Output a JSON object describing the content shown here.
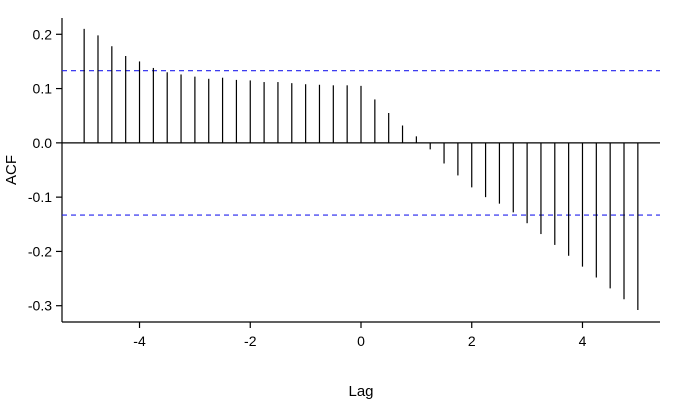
{
  "chart_data": {
    "type": "bar",
    "subtype": "acf-stem-plot",
    "title": "",
    "xlabel": "Lag",
    "ylabel": "ACF",
    "xlim": [
      -5.4,
      5.4
    ],
    "ylim": [
      -0.33,
      0.23
    ],
    "x_tick_values": [
      -4,
      -2,
      0,
      2,
      4
    ],
    "x_tick_labels": [
      "-4",
      "-2",
      "0",
      "2",
      "4"
    ],
    "y_tick_values": [
      -0.3,
      -0.2,
      -0.1,
      0.0,
      0.1,
      0.2
    ],
    "y_tick_labels": [
      "-0.3",
      "-0.2",
      "-0.1",
      "0.0",
      "0.1",
      "0.2"
    ],
    "grid": false,
    "legend": "none",
    "zero_line": true,
    "confidence_level": 0.133,
    "confidence_line_style": "dashed",
    "colors": {
      "spike": "#000000",
      "axis": "#000000",
      "confidence": "#2222ee",
      "background": "#ffffff"
    },
    "x": [
      -5,
      -4.75,
      -4.5,
      -4.25,
      -4,
      -3.75,
      -3.5,
      -3.25,
      -3,
      -2.75,
      -2.5,
      -2.25,
      -2,
      -1.75,
      -1.5,
      -1.25,
      -1,
      -0.75,
      -0.5,
      -0.25,
      0,
      0.25,
      0.5,
      0.75,
      1,
      1.25,
      1.5,
      1.75,
      2,
      2.25,
      2.5,
      2.75,
      3,
      3.25,
      3.5,
      3.75,
      4,
      4.25,
      4.5,
      4.75,
      5
    ],
    "values": [
      0.21,
      0.198,
      0.178,
      0.16,
      0.15,
      0.138,
      0.13,
      0.126,
      0.122,
      0.118,
      0.12,
      0.116,
      0.115,
      0.112,
      0.112,
      0.11,
      0.108,
      0.107,
      0.106,
      0.106,
      0.105,
      0.08,
      0.055,
      0.032,
      0.012,
      -0.012,
      -0.038,
      -0.06,
      -0.082,
      -0.1,
      -0.112,
      -0.128,
      -0.148,
      -0.168,
      -0.188,
      -0.208,
      -0.228,
      -0.248,
      -0.268,
      -0.288,
      -0.308
    ]
  }
}
